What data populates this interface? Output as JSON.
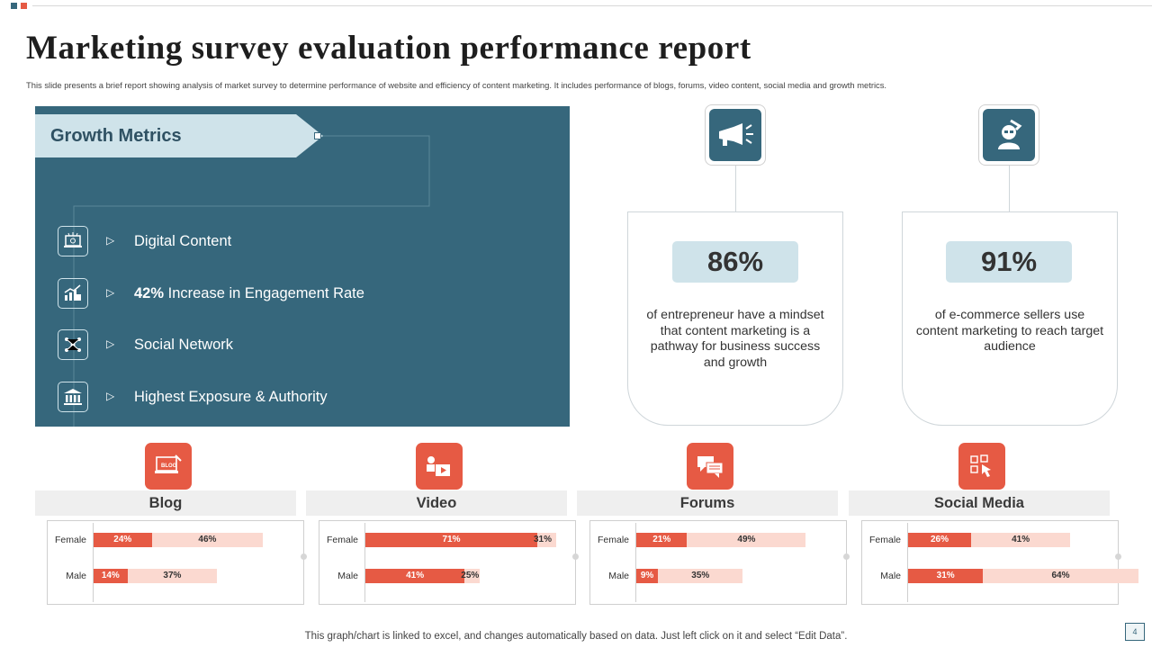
{
  "title": "Marketing survey evaluation performance report",
  "subtitle": "This slide presents a  brief report showing analysis of market survey to determine performance of website and efficiency of content marketing. It includes performance of blogs, forums, video content, social media  and growth metrics.",
  "colors": {
    "teal": "#36677c",
    "light_teal": "#cfe3ea",
    "accent": "#e65a44",
    "accent_light": "#fbd9d0"
  },
  "growth": {
    "label": "Growth Metrics",
    "items": [
      {
        "icon": "laptop-icon",
        "bold": "",
        "text": "Digital Content"
      },
      {
        "icon": "growth-chart-icon",
        "bold": "42%",
        "text": "Increase in Engagement  Rate"
      },
      {
        "icon": "network-icon",
        "bold": "",
        "text": "Social Network"
      },
      {
        "icon": "institution-icon",
        "bold": "",
        "text": "Highest Exposure & Authority"
      }
    ]
  },
  "stats": [
    {
      "icon": "megaphone-icon",
      "value": "86%",
      "desc": "of entrepreneur have a mindset that content marketing is a pathway for business success and growth"
    },
    {
      "icon": "support-agent-icon",
      "value": "91%",
      "desc": "of e-commerce sellers use content marketing to reach target audience"
    }
  ],
  "categories": [
    {
      "name": "Blog",
      "icon": "blog-icon",
      "rows": [
        {
          "label": "Female",
          "a": 24,
          "b": 46,
          "a_label": "24%",
          "b_label": "46%"
        },
        {
          "label": "Male",
          "a": 14,
          "b": 37,
          "a_label": "14%",
          "b_label": "37%"
        }
      ]
    },
    {
      "name": "Video",
      "icon": "video-icon",
      "rows": [
        {
          "label": "Female",
          "a": 71,
          "b": 31,
          "a_label": "71%",
          "b_label": "31%"
        },
        {
          "label": "Male",
          "a": 41,
          "b": 25,
          "a_label": "41%",
          "b_label": "25%"
        }
      ]
    },
    {
      "name": "Forums",
      "icon": "forum-icon",
      "rows": [
        {
          "label": "Female",
          "a": 21,
          "b": 49,
          "a_label": "21%",
          "b_label": "49%"
        },
        {
          "label": "Male",
          "a": 9,
          "b": 35,
          "a_label": "9%",
          "b_label": "35%"
        }
      ]
    },
    {
      "name": "Social Media",
      "icon": "social-media-icon",
      "rows": [
        {
          "label": "Female",
          "a": 26,
          "b": 41,
          "a_label": "26%",
          "b_label": "41%"
        },
        {
          "label": "Male",
          "a": 31,
          "b": 64,
          "a_label": "31%",
          "b_label": "64%"
        }
      ]
    }
  ],
  "footer": "This graph/chart is linked to excel,  and changes automatically based on data. Just left click on it and select “Edit Data”.",
  "page_number": "4"
}
